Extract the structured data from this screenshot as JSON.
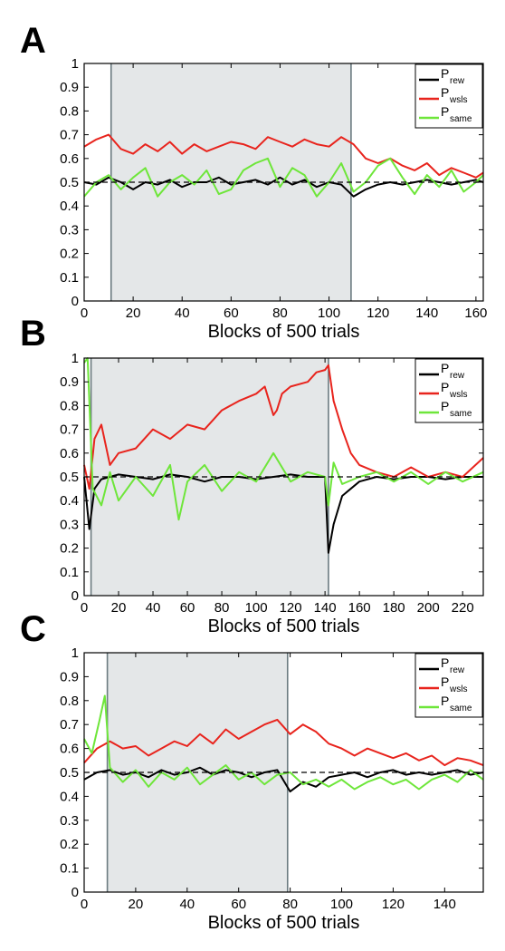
{
  "chart_data": [
    {
      "panel": "A",
      "type": "line",
      "xlabel": "Blocks of 500 trials",
      "ylabel": "",
      "xlim": [
        0,
        163
      ],
      "ylim": [
        0,
        1
      ],
      "x_ticks": [
        0,
        20,
        40,
        60,
        80,
        100,
        120,
        140,
        160
      ],
      "y_ticks": [
        0,
        0.1,
        0.2,
        0.3,
        0.4,
        0.5,
        0.6,
        0.7,
        0.8,
        0.9,
        1
      ],
      "shaded_region": [
        11,
        109
      ],
      "reference_line": 0.5,
      "legend_position": "top-right",
      "series": [
        {
          "name_main": "P",
          "name_sub": "rew",
          "color": "#000000",
          "x": [
            0,
            5,
            10,
            15,
            20,
            25,
            30,
            35,
            40,
            45,
            50,
            55,
            60,
            65,
            70,
            75,
            80,
            85,
            90,
            95,
            100,
            105,
            110,
            115,
            120,
            125,
            130,
            135,
            140,
            145,
            150,
            155,
            160,
            163
          ],
          "y": [
            0.5,
            0.49,
            0.52,
            0.5,
            0.47,
            0.5,
            0.49,
            0.51,
            0.48,
            0.5,
            0.5,
            0.52,
            0.49,
            0.5,
            0.51,
            0.49,
            0.52,
            0.49,
            0.51,
            0.48,
            0.5,
            0.49,
            0.44,
            0.47,
            0.49,
            0.5,
            0.49,
            0.5,
            0.51,
            0.5,
            0.49,
            0.5,
            0.51,
            0.5
          ]
        },
        {
          "name_main": "P",
          "name_sub": "wsls",
          "color": "#e8241d",
          "x": [
            0,
            5,
            10,
            15,
            20,
            25,
            30,
            35,
            40,
            45,
            50,
            55,
            60,
            65,
            70,
            75,
            80,
            85,
            90,
            95,
            100,
            105,
            110,
            115,
            120,
            125,
            130,
            135,
            140,
            145,
            150,
            155,
            160,
            163
          ],
          "y": [
            0.65,
            0.68,
            0.7,
            0.64,
            0.62,
            0.66,
            0.63,
            0.67,
            0.62,
            0.66,
            0.63,
            0.65,
            0.67,
            0.66,
            0.64,
            0.69,
            0.67,
            0.65,
            0.68,
            0.66,
            0.65,
            0.69,
            0.66,
            0.6,
            0.58,
            0.6,
            0.57,
            0.55,
            0.58,
            0.53,
            0.56,
            0.54,
            0.52,
            0.54
          ]
        },
        {
          "name_main": "P",
          "name_sub": "same",
          "color": "#6ee63a",
          "x": [
            0,
            5,
            10,
            15,
            20,
            25,
            30,
            35,
            40,
            45,
            50,
            55,
            60,
            65,
            70,
            75,
            80,
            85,
            90,
            95,
            100,
            105,
            110,
            115,
            120,
            125,
            130,
            135,
            140,
            145,
            150,
            155,
            160,
            163
          ],
          "y": [
            0.44,
            0.5,
            0.53,
            0.47,
            0.52,
            0.56,
            0.44,
            0.5,
            0.53,
            0.49,
            0.55,
            0.45,
            0.47,
            0.55,
            0.58,
            0.6,
            0.48,
            0.56,
            0.53,
            0.44,
            0.5,
            0.58,
            0.46,
            0.5,
            0.57,
            0.6,
            0.52,
            0.45,
            0.53,
            0.48,
            0.55,
            0.46,
            0.5,
            0.53
          ]
        }
      ]
    },
    {
      "panel": "B",
      "type": "line",
      "xlabel": "Blocks of 500 trials",
      "ylabel": "",
      "xlim": [
        0,
        232
      ],
      "ylim": [
        0,
        1
      ],
      "x_ticks": [
        0,
        20,
        40,
        60,
        80,
        100,
        120,
        140,
        160,
        180,
        200,
        220
      ],
      "y_ticks": [
        0,
        0.1,
        0.2,
        0.3,
        0.4,
        0.5,
        0.6,
        0.7,
        0.8,
        0.9,
        1
      ],
      "shaded_region": [
        4,
        142
      ],
      "reference_line": 0.5,
      "legend_position": "top-right",
      "series": [
        {
          "name_main": "P",
          "name_sub": "rew",
          "color": "#000000",
          "x": [
            0,
            3,
            6,
            10,
            20,
            30,
            40,
            50,
            60,
            70,
            80,
            90,
            100,
            110,
            120,
            130,
            140,
            142,
            145,
            150,
            160,
            170,
            180,
            190,
            200,
            210,
            220,
            232
          ],
          "y": [
            0.5,
            0.28,
            0.45,
            0.49,
            0.51,
            0.5,
            0.49,
            0.51,
            0.5,
            0.48,
            0.5,
            0.5,
            0.49,
            0.5,
            0.51,
            0.5,
            0.5,
            0.18,
            0.3,
            0.42,
            0.48,
            0.5,
            0.49,
            0.5,
            0.5,
            0.49,
            0.5,
            0.5
          ]
        },
        {
          "name_main": "P",
          "name_sub": "wsls",
          "color": "#e8241d",
          "x": [
            0,
            3,
            6,
            10,
            15,
            20,
            30,
            40,
            50,
            60,
            70,
            80,
            90,
            100,
            105,
            110,
            112,
            115,
            120,
            130,
            135,
            140,
            142,
            145,
            150,
            155,
            160,
            170,
            180,
            190,
            200,
            210,
            220,
            232
          ],
          "y": [
            0.55,
            0.45,
            0.66,
            0.72,
            0.55,
            0.6,
            0.62,
            0.7,
            0.66,
            0.72,
            0.7,
            0.78,
            0.82,
            0.85,
            0.88,
            0.76,
            0.78,
            0.85,
            0.88,
            0.9,
            0.94,
            0.95,
            0.97,
            0.82,
            0.7,
            0.6,
            0.55,
            0.52,
            0.5,
            0.54,
            0.5,
            0.52,
            0.5,
            0.58
          ]
        },
        {
          "name_main": "P",
          "name_sub": "same",
          "color": "#6ee63a",
          "x": [
            0,
            2,
            5,
            10,
            15,
            20,
            30,
            40,
            50,
            55,
            60,
            70,
            80,
            90,
            100,
            110,
            120,
            130,
            140,
            142,
            145,
            150,
            160,
            170,
            180,
            190,
            200,
            210,
            220,
            232
          ],
          "y": [
            0.98,
            1.0,
            0.45,
            0.38,
            0.52,
            0.4,
            0.5,
            0.42,
            0.55,
            0.32,
            0.48,
            0.55,
            0.44,
            0.52,
            0.48,
            0.6,
            0.48,
            0.52,
            0.5,
            0.38,
            0.56,
            0.47,
            0.5,
            0.52,
            0.48,
            0.52,
            0.47,
            0.52,
            0.48,
            0.52
          ]
        }
      ]
    },
    {
      "panel": "C",
      "type": "line",
      "xlabel": "Blocks of 500 trials",
      "ylabel": "",
      "xlim": [
        0,
        155
      ],
      "ylim": [
        0,
        1
      ],
      "x_ticks": [
        0,
        20,
        40,
        60,
        80,
        100,
        120,
        140
      ],
      "y_ticks": [
        0,
        0.1,
        0.2,
        0.3,
        0.4,
        0.5,
        0.6,
        0.7,
        0.8,
        0.9,
        1
      ],
      "shaded_region": [
        9,
        79
      ],
      "reference_line": 0.5,
      "legend_position": "top-right",
      "series": [
        {
          "name_main": "P",
          "name_sub": "rew",
          "color": "#000000",
          "x": [
            0,
            5,
            10,
            15,
            20,
            25,
            30,
            35,
            40,
            45,
            50,
            55,
            60,
            65,
            70,
            75,
            80,
            85,
            90,
            95,
            100,
            105,
            110,
            115,
            120,
            125,
            130,
            135,
            140,
            145,
            150,
            155
          ],
          "y": [
            0.47,
            0.5,
            0.51,
            0.49,
            0.5,
            0.48,
            0.51,
            0.49,
            0.5,
            0.52,
            0.49,
            0.51,
            0.5,
            0.48,
            0.5,
            0.51,
            0.42,
            0.46,
            0.44,
            0.48,
            0.49,
            0.5,
            0.48,
            0.5,
            0.51,
            0.49,
            0.5,
            0.49,
            0.5,
            0.51,
            0.49,
            0.5
          ]
        },
        {
          "name_main": "P",
          "name_sub": "wsls",
          "color": "#e8241d",
          "x": [
            0,
            5,
            10,
            15,
            20,
            25,
            30,
            35,
            40,
            45,
            50,
            55,
            60,
            65,
            70,
            75,
            80,
            85,
            90,
            95,
            100,
            105,
            110,
            115,
            120,
            125,
            130,
            135,
            140,
            145,
            150,
            155
          ],
          "y": [
            0.54,
            0.6,
            0.63,
            0.6,
            0.61,
            0.57,
            0.6,
            0.63,
            0.61,
            0.66,
            0.62,
            0.68,
            0.64,
            0.67,
            0.7,
            0.72,
            0.66,
            0.7,
            0.67,
            0.62,
            0.6,
            0.57,
            0.6,
            0.58,
            0.56,
            0.58,
            0.55,
            0.57,
            0.53,
            0.56,
            0.55,
            0.53
          ]
        },
        {
          "name_main": "P",
          "name_sub": "same",
          "color": "#6ee63a",
          "x": [
            0,
            3,
            6,
            8,
            10,
            15,
            20,
            25,
            30,
            35,
            40,
            45,
            50,
            55,
            60,
            65,
            70,
            75,
            80,
            85,
            90,
            95,
            100,
            105,
            110,
            115,
            120,
            125,
            130,
            135,
            140,
            145,
            150,
            155
          ],
          "y": [
            0.64,
            0.58,
            0.72,
            0.82,
            0.52,
            0.46,
            0.51,
            0.44,
            0.5,
            0.47,
            0.52,
            0.45,
            0.49,
            0.53,
            0.47,
            0.5,
            0.45,
            0.49,
            0.5,
            0.45,
            0.47,
            0.44,
            0.47,
            0.43,
            0.46,
            0.48,
            0.45,
            0.47,
            0.43,
            0.47,
            0.49,
            0.46,
            0.51,
            0.47
          ]
        }
      ]
    }
  ]
}
